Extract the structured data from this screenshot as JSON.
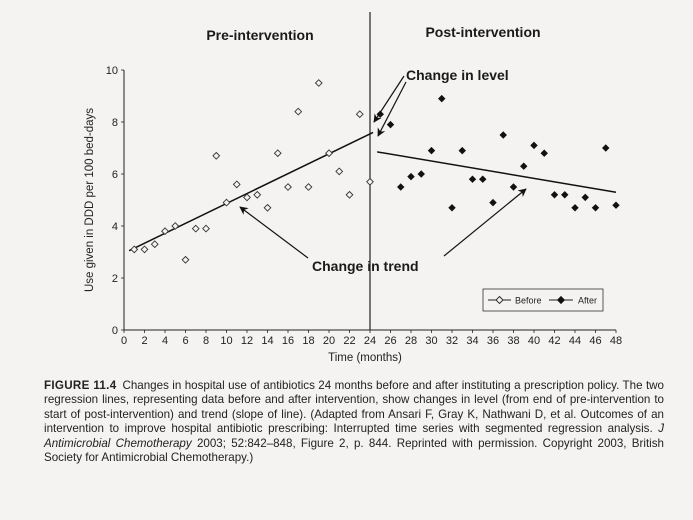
{
  "chart_data": {
    "type": "scatter",
    "title": "",
    "xlabel": "Time (months)",
    "ylabel": "Use given in DDD per 100 bed-days",
    "xlim": [
      0,
      48
    ],
    "ylim": [
      0,
      10
    ],
    "x_ticks": [
      0,
      2,
      4,
      6,
      8,
      10,
      12,
      14,
      16,
      18,
      20,
      22,
      24,
      26,
      28,
      30,
      32,
      34,
      36,
      38,
      40,
      42,
      44,
      46,
      48
    ],
    "y_ticks": [
      0,
      2,
      4,
      6,
      8,
      10
    ],
    "grid": false,
    "legend": "bottom-right",
    "intervention_month": 24.5,
    "panel_labels": {
      "pre": "Pre-intervention",
      "post": "Post-intervention"
    },
    "series": [
      {
        "name": "Before",
        "marker": "open-diamond",
        "points": [
          [
            1,
            3.1
          ],
          [
            2,
            3.1
          ],
          [
            3,
            3.3
          ],
          [
            4,
            3.8
          ],
          [
            5,
            4.0
          ],
          [
            6,
            2.7
          ],
          [
            7,
            3.9
          ],
          [
            8,
            3.9
          ],
          [
            9,
            6.7
          ],
          [
            10,
            4.9
          ],
          [
            11,
            5.6
          ],
          [
            12,
            5.1
          ],
          [
            13,
            5.2
          ],
          [
            14,
            4.7
          ],
          [
            15,
            6.8
          ],
          [
            16,
            5.5
          ],
          [
            17,
            8.4
          ],
          [
            18,
            5.5
          ],
          [
            19,
            9.5
          ],
          [
            20,
            6.8
          ],
          [
            21,
            6.1
          ],
          [
            22,
            5.2
          ],
          [
            23,
            8.3
          ],
          [
            24,
            5.7
          ]
        ],
        "trend": [
          [
            0.5,
            3.05
          ],
          [
            24.3,
            7.6
          ]
        ]
      },
      {
        "name": "After",
        "marker": "filled-diamond",
        "points": [
          [
            25,
            8.3
          ],
          [
            26,
            7.9
          ],
          [
            27,
            5.5
          ],
          [
            28,
            5.9
          ],
          [
            29,
            6.0
          ],
          [
            30,
            6.9
          ],
          [
            31,
            8.9
          ],
          [
            32,
            4.7
          ],
          [
            33,
            6.9
          ],
          [
            34,
            5.8
          ],
          [
            35,
            5.8
          ],
          [
            36,
            4.9
          ],
          [
            37,
            7.5
          ],
          [
            38,
            5.5
          ],
          [
            39,
            6.3
          ],
          [
            40,
            7.1
          ],
          [
            41,
            6.8
          ],
          [
            42,
            5.2
          ],
          [
            43,
            5.2
          ],
          [
            44,
            4.7
          ],
          [
            45,
            5.1
          ],
          [
            46,
            4.7
          ],
          [
            47,
            7.0
          ],
          [
            48,
            4.8
          ]
        ],
        "trend": [
          [
            24.7,
            6.85
          ],
          [
            48,
            5.3
          ]
        ]
      }
    ],
    "annotations": {
      "change_in_level": "Change in level",
      "change_in_trend": "Change in trend"
    }
  },
  "caption": {
    "label": "FIGURE 11.4",
    "text_before_journal": "Changes in hospital use of antibiotics 24 months before and after instituting a prescription policy. The two regression lines, representing data before and after intervention, show changes in level (from end of pre-intervention to start of post-intervention) and trend (slope of line). (Adapted from Ansari F, Gray K, Nathwani D, et al. Outcomes of an intervention to improve hospital antibiotic prescribing: Interrupted time series with segmented regression analysis.",
    "journal": "J Antimicrobial Chemotherapy",
    "text_after_journal": "2003; 52:842–848, Figure 2, p. 844. Reprinted with permission. Copyright 2003, British Society for Antimicrobial Chemotherapy.)"
  }
}
